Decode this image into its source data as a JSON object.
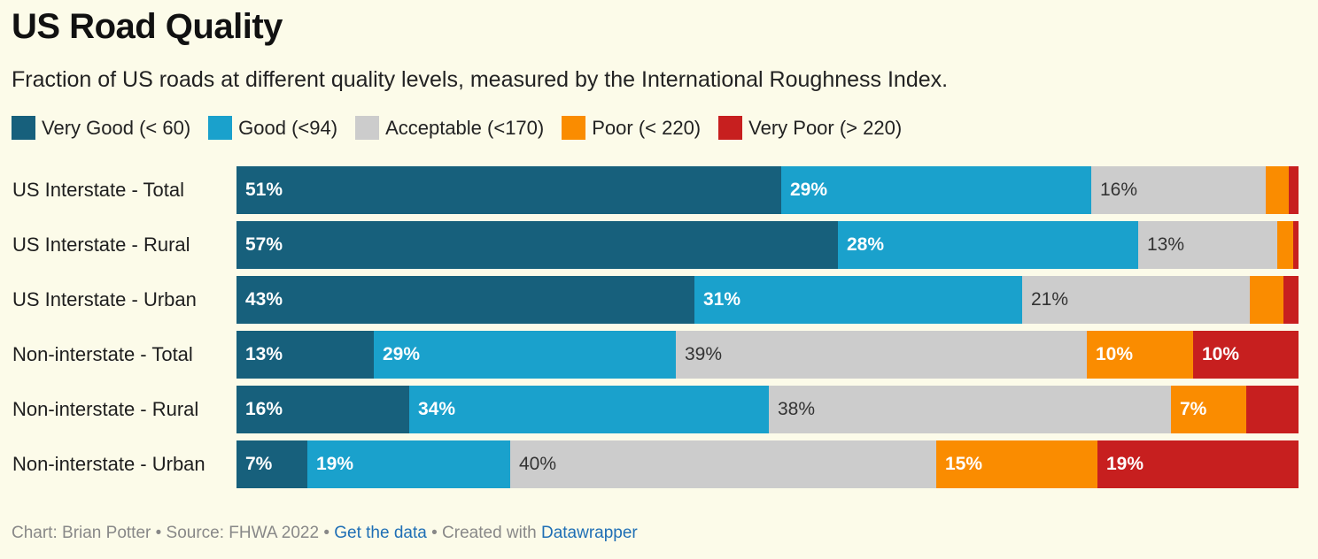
{
  "colors": {
    "very_good": "#17607c",
    "good": "#1aa1cc",
    "acceptable": "#cccccc",
    "poor": "#fa8c00",
    "very_poor": "#c71f1f"
  },
  "chart_data": {
    "type": "bar",
    "orientation": "horizontal",
    "stacked": true,
    "normalized": true,
    "title": "US Road Quality",
    "subtitle": "Fraction of US roads at different quality levels, measured by the International Roughness Index.",
    "xlim": [
      0,
      100
    ],
    "legend_position": "top",
    "categories": [
      "US Interstate - Total",
      "US Interstate - Rural",
      "US Interstate - Urban",
      "Non-interstate - Total",
      "Non-interstate - Rural",
      "Non-interstate - Urban"
    ],
    "series": [
      {
        "name": "Very Good (< 60)",
        "key": "very_good",
        "values": [
          51.3,
          56.6,
          43.1,
          12.9,
          16.3,
          6.7
        ],
        "labels": [
          "51%",
          "57%",
          "43%",
          "13%",
          "16%",
          "7%"
        ]
      },
      {
        "name": "Good (<94)",
        "key": "good",
        "values": [
          29.2,
          28.3,
          30.9,
          28.5,
          33.8,
          19.1
        ],
        "labels": [
          "29%",
          "28%",
          "31%",
          "29%",
          "34%",
          "19%"
        ]
      },
      {
        "name": "Acceptable (<170)",
        "key": "acceptable",
        "values": [
          16.4,
          13.1,
          21.4,
          38.7,
          37.9,
          40.1
        ],
        "labels": [
          "16%",
          "13%",
          "21%",
          "39%",
          "38%",
          "40%"
        ]
      },
      {
        "name": "Poor (< 220)",
        "key": "poor",
        "values": [
          2.2,
          1.5,
          3.2,
          10.0,
          7.1,
          15.2
        ],
        "labels": [
          "",
          "",
          "",
          "10%",
          "7%",
          "15%"
        ]
      },
      {
        "name": "Very Poor (> 220)",
        "key": "very_poor",
        "values": [
          0.9,
          0.5,
          1.4,
          9.9,
          4.9,
          18.9
        ],
        "labels": [
          "",
          "",
          "",
          "10%",
          "",
          "19%"
        ]
      }
    ]
  },
  "footer": {
    "prefix": "Chart: Brian Potter • Source: FHWA 2022 • ",
    "get_data": "Get the data",
    "middle": " • Created with ",
    "datawrapper": "Datawrapper"
  }
}
